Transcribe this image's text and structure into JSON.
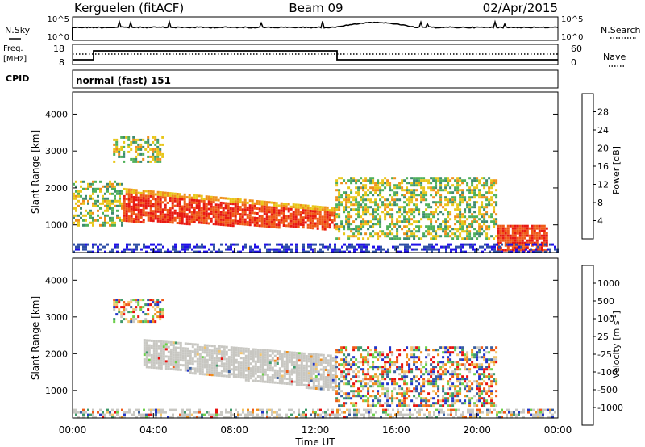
{
  "header": {
    "station": "Kerguelen (fitACF)",
    "beam": "Beam 09",
    "date": "02/Apr/2015"
  },
  "strip": {
    "nsky_label": "N.Sky",
    "nsearch_label": "N.Search",
    "exp_top": "10^5",
    "exp_bottom": "10^0",
    "freq_label_1": "Freq.",
    "freq_label_2": "[MHz]",
    "freq_ticks": [
      "18",
      "8"
    ],
    "nave_label": "Nave",
    "nave_ticks": [
      "60",
      "0"
    ],
    "cpid_label": "CPID",
    "cpid_text": "normal (fast) 151"
  },
  "colors": {
    "scale": [
      "#1f10e8",
      "#2e4ea6",
      "#3d8a70",
      "#4fb05a",
      "#e8c619",
      "#ef8f1a",
      "#ef5a18",
      "#e81a12"
    ],
    "velocity_scale": [
      "#e8100e",
      "#ef5a18",
      "#ef8f1a",
      "#f2c46c",
      "#c8c7c2",
      "#6ccf4a",
      "#3f9a6a",
      "#3a5fa0",
      "#2236c8"
    ],
    "gray": "#c8c7c2",
    "frame": "#000000"
  },
  "chart_data": [
    {
      "type": "heatmap",
      "title": "",
      "xlabel": "Time UT",
      "ylabel": "Slant Range [km]",
      "xlim": [
        "00:00",
        "24:00"
      ],
      "ylim": [
        250,
        4600
      ],
      "x_ticks": [
        "00:00",
        "04:00",
        "08:00",
        "12:00",
        "16:00",
        "20:00",
        "00:00"
      ],
      "y_ticks": [
        "1000",
        "2000",
        "3000",
        "4000"
      ],
      "colorbar": {
        "label": "Power [dB]",
        "ticks": [
          "28",
          "24",
          "20",
          "16",
          "12",
          "8",
          "4"
        ],
        "range": [
          0,
          30
        ]
      },
      "echo_regions": [
        {
          "t": [
            2.5,
            13.0
          ],
          "range_km": [
            900,
            2000
          ],
          "value": "26-30 dB"
        },
        {
          "t": [
            0.0,
            2.5
          ],
          "range_km": [
            1000,
            2200
          ],
          "value": "8-20 dB"
        },
        {
          "t": [
            2.0,
            4.5
          ],
          "range_km": [
            2700,
            3400
          ],
          "value": "10-24 dB"
        },
        {
          "t": [
            13.0,
            21.0
          ],
          "range_km": [
            600,
            2300
          ],
          "value": "8-24 dB"
        },
        {
          "t": [
            21.0,
            23.5
          ],
          "range_km": [
            300,
            1000
          ],
          "value": "24-30 dB"
        },
        {
          "t": [
            0.0,
            24.0
          ],
          "range_km": [
            250,
            500
          ],
          "value": "4-12 dB"
        }
      ]
    },
    {
      "type": "heatmap",
      "title": "",
      "xlabel": "Time UT",
      "ylabel": "Slant Range [km]",
      "xlim": [
        "00:00",
        "24:00"
      ],
      "ylim": [
        250,
        4600
      ],
      "x_ticks": [
        "00:00",
        "04:00",
        "08:00",
        "12:00",
        "16:00",
        "20:00",
        "00:00"
      ],
      "y_ticks": [
        "1000",
        "2000",
        "3000",
        "4000"
      ],
      "colorbar": {
        "label": "Velocity [m s^-1]",
        "label_main": "Velocity",
        "label_units": "[m s",
        "label_exp": "-1",
        "label_close": "]",
        "ticks": [
          "1000",
          "500",
          "100",
          "25",
          "-25",
          "-100",
          "-500",
          "-1000"
        ],
        "range": [
          -1000,
          1000
        ]
      },
      "echo_regions": [
        {
          "t": [
            3.5,
            13.0
          ],
          "range_km": [
            1000,
            2400
          ],
          "value": "ground scatter (-25 to 25 m/s)"
        },
        {
          "t": [
            2.0,
            4.5
          ],
          "range_km": [
            2900,
            3500
          ],
          "value": "-500 to -100 m/s"
        },
        {
          "t": [
            13.0,
            21.0
          ],
          "range_km": [
            600,
            2200
          ],
          "value": "-500 to 100 m/s"
        },
        {
          "t": [
            0.0,
            24.0
          ],
          "range_km": [
            250,
            500
          ],
          "value": "-100 to 100 m/s"
        }
      ]
    }
  ]
}
